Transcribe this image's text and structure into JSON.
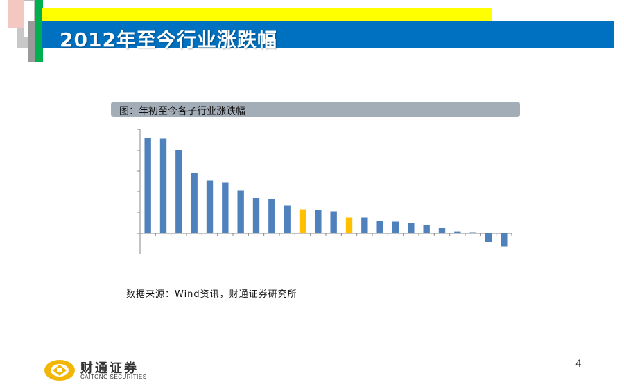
{
  "slide": {
    "title": "2012年至今行业涨跌幅",
    "page_number": "4"
  },
  "figure": {
    "caption": "图：年初至今各子行业涨跌幅",
    "source": "数据来源：Wind资讯，财通证券研究所"
  },
  "logo": {
    "name_cn": "财通证券",
    "name_en": "CAITONG SECURITIES"
  },
  "colors": {
    "title_band": "#0070c0",
    "accent_yellow": "#ffff00",
    "bar_default": "#4f81bd",
    "bar_highlight": "#ffc000"
  },
  "chart_data": {
    "type": "bar",
    "values": [
      46,
      45.5,
      40,
      29,
      25.5,
      24.5,
      20.5,
      17,
      16.5,
      13.5,
      11.5,
      11,
      10.5,
      7.5,
      7.5,
      6,
      5.5,
      5,
      4,
      2.5,
      0.8,
      0.5,
      -4,
      -6.5
    ],
    "highlight_indices": [
      10,
      13
    ],
    "ylim": [
      -10,
      50
    ],
    "grid": false
  }
}
